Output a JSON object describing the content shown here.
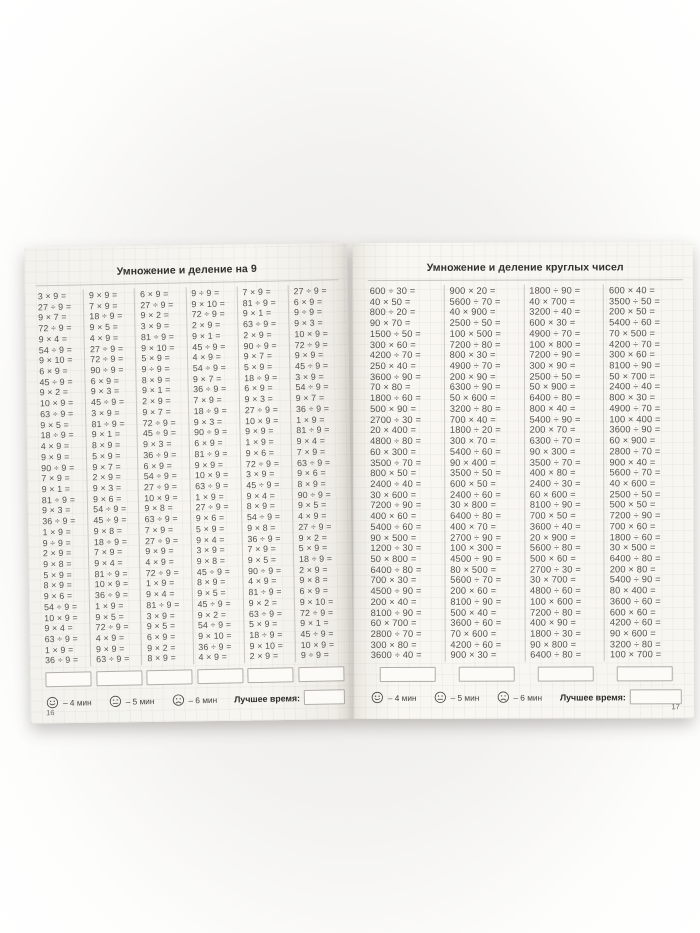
{
  "style": {
    "background_color": "#f3f2f0",
    "page_color": "#f7f6f1",
    "text_color": "#56534e",
    "line_color": "#cbc8c3"
  },
  "pages": [
    {
      "title": "Умножение и деление на 9",
      "page_number": "16",
      "columns": [
        [
          "3 × 9 =",
          "27 ÷ 9 =",
          "9 × 7 =",
          "72 ÷ 9 =",
          "9 × 4 =",
          "54 ÷ 9 =",
          "9 × 10 =",
          "6 × 9 =",
          "45 ÷ 9 =",
          "9 × 2 =",
          "10 × 9 =",
          "63 ÷ 9 =",
          "9 × 5 =",
          "18 ÷ 9 =",
          "4 × 9 =",
          "9 × 9 =",
          "90 ÷ 9 =",
          "7 × 9 =",
          "9 × 1 =",
          "81 ÷ 9 =",
          "9 × 3 =",
          "36 ÷ 9 =",
          "1 × 9 =",
          "9 ÷ 9 =",
          "2 × 9 =",
          "9 × 8 =",
          "5 × 9 =",
          "8 × 9 =",
          "9 × 6 =",
          "54 ÷ 9 =",
          "10 × 9 =",
          "9 × 4 =",
          "63 ÷ 9 =",
          "1 × 9 =",
          "36 ÷ 9 ="
        ],
        [
          "9 × 9 =",
          "7 × 9 =",
          "18 ÷ 9 =",
          "9 × 5 =",
          "4 × 9 =",
          "27 ÷ 9 =",
          "72 ÷ 9 =",
          "90 ÷ 9 =",
          "6 × 9 =",
          "9 × 3 =",
          "45 ÷ 9 =",
          "3 × 9 =",
          "81 ÷ 9 =",
          "9 × 1 =",
          "8 × 9 =",
          "5 × 9 =",
          "9 × 7 =",
          "2 × 9 =",
          "9 × 3 =",
          "9 × 6 =",
          "54 ÷ 9 =",
          "45 ÷ 9 =",
          "9 × 8 =",
          "18 ÷ 9 =",
          "7 × 9 =",
          "9 × 4 =",
          "81 ÷ 9 =",
          "10 × 9 =",
          "36 ÷ 9 =",
          "1 × 9 =",
          "9 × 5 =",
          "72 ÷ 9 =",
          "4 × 9 =",
          "9 × 9 =",
          "63 ÷ 9 ="
        ],
        [
          "6 × 9 =",
          "27 ÷ 9 =",
          "9 × 2 =",
          "3 × 9 =",
          "81 ÷ 9 =",
          "9 × 10 =",
          "5 × 9 =",
          "9 ÷ 9 =",
          "8 × 9 =",
          "9 × 1 =",
          "2 × 9 =",
          "9 × 7 =",
          "72 ÷ 9 =",
          "45 ÷ 9 =",
          "9 × 3 =",
          "36 ÷ 9 =",
          "6 × 9 =",
          "54 ÷ 9 =",
          "27 ÷ 9 =",
          "10 × 9 =",
          "9 × 8 =",
          "63 ÷ 9 =",
          "7 × 9 =",
          "27 ÷ 9 =",
          "9 × 9 =",
          "4 × 9 =",
          "72 ÷ 9 =",
          "1 × 9 =",
          "9 × 4 =",
          "81 ÷ 9 =",
          "3 × 9 =",
          "9 × 5 =",
          "6 × 9 =",
          "9 × 2 =",
          "8 × 9 ="
        ],
        [
          "9 ÷ 9 =",
          "9 × 10 =",
          "72 ÷ 9 =",
          "2 × 9 =",
          "9 × 1 =",
          "45 ÷ 9 =",
          "4 × 9 =",
          "54 ÷ 9 =",
          "9 × 7 =",
          "36 ÷ 9 =",
          "7 × 9 =",
          "18 ÷ 9 =",
          "9 × 3 =",
          "90 ÷ 9 =",
          "6 × 9 =",
          "81 ÷ 9 =",
          "9 × 9 =",
          "10 × 9 =",
          "63 ÷ 9 =",
          "1 × 9 =",
          "27 ÷ 9 =",
          "9 × 6 =",
          "5 × 9 =",
          "9 × 4 =",
          "3 × 9 =",
          "9 × 8 =",
          "45 ÷ 9 =",
          "8 × 9 =",
          "9 × 5 =",
          "45 ÷ 9 =",
          "9 × 2 =",
          "54 ÷ 9 =",
          "9 × 10 =",
          "36 ÷ 9 =",
          "4 × 9 ="
        ],
        [
          "7 × 9 =",
          "81 ÷ 9 =",
          "9 × 1 =",
          "63 ÷ 9 =",
          "2 × 9 =",
          "90 ÷ 9 =",
          "9 × 7 =",
          "5 × 9 =",
          "18 ÷ 9 =",
          "6 × 9 =",
          "9 × 3 =",
          "27 ÷ 9 =",
          "10 × 9 =",
          "9 × 9 =",
          "1 × 9 =",
          "9 × 6 =",
          "72 ÷ 9 =",
          "3 × 9 =",
          "45 ÷ 9 =",
          "9 × 4 =",
          "8 × 9 =",
          "54 ÷ 9 =",
          "9 × 8 =",
          "36 ÷ 9 =",
          "7 × 9 =",
          "9 × 5 =",
          "90 ÷ 9 =",
          "4 × 9 =",
          "81 ÷ 9 =",
          "9 × 2 =",
          "63 ÷ 9 =",
          "5 × 9 =",
          "18 ÷ 9 =",
          "9 × 10 =",
          "2 × 9 ="
        ],
        [
          "27 ÷ 9 =",
          "6 × 9 =",
          "9 ÷ 9 =",
          "9 × 3 =",
          "10 × 9 =",
          "72 ÷ 9 =",
          "9 × 9 =",
          "45 ÷ 9 =",
          "3 × 9 =",
          "54 ÷ 9 =",
          "9 × 7 =",
          "36 ÷ 9 =",
          "1 × 9 =",
          "81 ÷ 9 =",
          "9 × 4 =",
          "7 × 9 =",
          "63 ÷ 9 =",
          "9 × 6 =",
          "8 × 9 =",
          "90 ÷ 9 =",
          "9 × 5 =",
          "4 × 9 =",
          "27 ÷ 9 =",
          "9 × 2 =",
          "5 × 9 =",
          "18 ÷ 9 =",
          "2 × 9 =",
          "9 × 8 =",
          "6 × 9 =",
          "9 × 10 =",
          "72 ÷ 9 =",
          "9 × 1 =",
          "45 ÷ 9 =",
          "10 × 9 =",
          "9 ÷ 9 ="
        ]
      ],
      "footer": {
        "smileys": [
          {
            "icon": "happy-face-icon",
            "label": "– 4 мин"
          },
          {
            "icon": "neutral-face-icon",
            "label": "– 5 мин"
          },
          {
            "icon": "sad-face-icon",
            "label": "– 6 мин"
          }
        ],
        "best_time_label": "Лучшее время:"
      }
    },
    {
      "title": "Умножение и деление круглых чисел",
      "page_number": "17",
      "columns": [
        [
          "600 ÷ 30 =",
          "40 × 50 =",
          "800 ÷ 20 =",
          "90 × 70 =",
          "1500 ÷ 50 =",
          "300 × 60 =",
          "4200 ÷ 70 =",
          "250 × 40 =",
          "3600 ÷ 90 =",
          "70 × 80 =",
          "1800 ÷ 60 =",
          "500 × 90 =",
          "2700 ÷ 30 =",
          "20 × 400 =",
          "4800 ÷ 80 =",
          "60 × 300 =",
          "3500 ÷ 70 =",
          "800 × 50 =",
          "2400 ÷ 40 =",
          "30 × 600 =",
          "7200 ÷ 90 =",
          "400 × 60 =",
          "5400 ÷ 60 =",
          "90 × 500 =",
          "1200 ÷ 30 =",
          "50 × 800 =",
          "6400 ÷ 80 =",
          "700 × 30 =",
          "4500 ÷ 90 =",
          "200 × 40 =",
          "8100 ÷ 90 =",
          "60 × 700 =",
          "2800 ÷ 70 =",
          "300 × 80 =",
          "3600 ÷ 40 ="
        ],
        [
          "900 × 20 =",
          "5600 ÷ 70 =",
          "40 × 900 =",
          "2500 ÷ 50 =",
          "100 × 500 =",
          "7200 ÷ 80 =",
          "800 × 30 =",
          "4900 ÷ 70 =",
          "200 × 90 =",
          "6300 ÷ 90 =",
          "50 × 600 =",
          "3200 ÷ 80 =",
          "700 × 40 =",
          "1800 ÷ 20 =",
          "300 × 70 =",
          "5400 ÷ 60 =",
          "90 × 400 =",
          "3500 ÷ 50 =",
          "600 × 50 =",
          "2400 ÷ 60 =",
          "30 × 800 =",
          "6400 ÷ 80 =",
          "400 × 70 =",
          "2700 ÷ 90 =",
          "100 × 300 =",
          "4500 ÷ 90 =",
          "80 × 500 =",
          "5600 ÷ 70 =",
          "200 × 60 =",
          "8100 ÷ 90 =",
          "500 × 40 =",
          "3600 ÷ 60 =",
          "70 × 600 =",
          "4200 ÷ 60 =",
          "900 × 30 ="
        ],
        [
          "1800 ÷ 90 =",
          "40 × 700 =",
          "3200 ÷ 40 =",
          "600 × 30 =",
          "4900 ÷ 70 =",
          "100 × 800 =",
          "7200 ÷ 90 =",
          "300 × 90 =",
          "2500 ÷ 50 =",
          "50 × 900 =",
          "6400 ÷ 80 =",
          "800 × 40 =",
          "5400 ÷ 90 =",
          "200 × 70 =",
          "6300 ÷ 70 =",
          "90 × 300 =",
          "3500 ÷ 70 =",
          "400 × 80 =",
          "2400 ÷ 30 =",
          "60 × 600 =",
          "8100 ÷ 90 =",
          "700 × 50 =",
          "3600 ÷ 40 =",
          "20 × 900 =",
          "5600 ÷ 80 =",
          "500 × 60 =",
          "2700 ÷ 30 =",
          "30 × 700 =",
          "4800 ÷ 60 =",
          "100 × 600 =",
          "7200 ÷ 80 =",
          "400 × 90 =",
          "1800 ÷ 30 =",
          "90 × 800 =",
          "6400 ÷ 80 ="
        ],
        [
          "600 × 40 =",
          "3500 ÷ 50 =",
          "200 × 50 =",
          "5400 ÷ 60 =",
          "70 × 500 =",
          "4200 ÷ 70 =",
          "300 × 60 =",
          "8100 ÷ 90 =",
          "50 × 700 =",
          "2400 ÷ 40 =",
          "800 × 30 =",
          "4900 ÷ 70 =",
          "100 × 400 =",
          "3600 ÷ 90 =",
          "60 × 900 =",
          "2800 ÷ 70 =",
          "900 × 40 =",
          "5600 ÷ 70 =",
          "40 × 600 =",
          "2500 ÷ 50 =",
          "500 × 50 =",
          "7200 ÷ 90 =",
          "700 × 60 =",
          "1800 ÷ 60 =",
          "30 × 500 =",
          "6400 ÷ 80 =",
          "200 × 80 =",
          "5400 ÷ 90 =",
          "80 × 400 =",
          "3600 ÷ 60 =",
          "600 × 60 =",
          "4200 ÷ 60 =",
          "90 × 600 =",
          "3200 ÷ 80 =",
          "100 × 700 ="
        ]
      ],
      "footer": {
        "smileys": [
          {
            "icon": "happy-face-icon",
            "label": "– 4 мин"
          },
          {
            "icon": "neutral-face-icon",
            "label": "– 5 мин"
          },
          {
            "icon": "sad-face-icon",
            "label": "– 6 мин"
          }
        ],
        "best_time_label": "Лучшее время:"
      }
    }
  ]
}
